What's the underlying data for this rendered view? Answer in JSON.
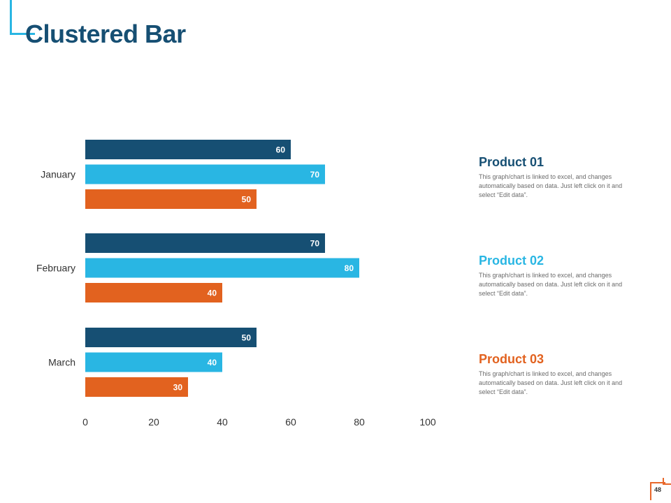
{
  "slide": {
    "title": "Clustered Bar",
    "page_number": "48"
  },
  "colors": {
    "product_01": "#164f73",
    "product_02": "#29b6e3",
    "product_03": "#e2621f",
    "title": "#164f73",
    "accent_top": "#29b6e3",
    "accent_bottom": "#e8672a"
  },
  "legend": [
    {
      "title": "Product 01",
      "description": "This graph/chart is linked to excel, and changes automatically based on data. Just left click on it and select “Edit data”."
    },
    {
      "title": "Product 02",
      "description": "This graph/chart is linked to excel, and changes automatically based on data. Just left click on it and select “Edit data”."
    },
    {
      "title": "Product 03",
      "description": "This graph/chart is linked to excel, and changes automatically based on data. Just left click on it and select “Edit data”."
    }
  ],
  "chart_data": {
    "type": "bar",
    "orientation": "horizontal",
    "title": "Clustered Bar",
    "categories": [
      "January",
      "February",
      "March"
    ],
    "series": [
      {
        "name": "Product 01",
        "values": [
          60,
          70,
          50
        ]
      },
      {
        "name": "Product 02",
        "values": [
          70,
          80,
          40
        ]
      },
      {
        "name": "Product 03",
        "values": [
          50,
          40,
          30
        ]
      }
    ],
    "xlim": [
      0,
      100
    ],
    "xticks": [
      0,
      20,
      40,
      60,
      80,
      100
    ],
    "xlabel": "",
    "ylabel": "",
    "grid": false,
    "data_labels": true,
    "legend_position": "right"
  }
}
